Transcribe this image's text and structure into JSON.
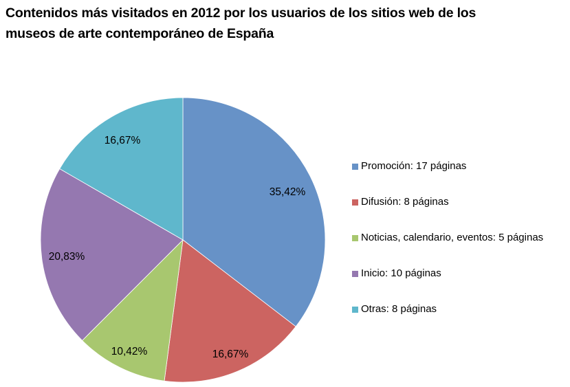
{
  "title": {
    "line1": "Contenidos más visitados en 2012 por los usuarios de los sitios web de los",
    "line2": "museos de arte contemporáneo de España"
  },
  "legend": [
    {
      "label": "Promoción: 17 páginas",
      "color": "#6792C7"
    },
    {
      "label": "Difusión: 8 páginas",
      "color": "#CC6461"
    },
    {
      "label": "Noticias, calendario, eventos: 5 páginas",
      "color": "#A8C76F"
    },
    {
      "label": "Inicio: 10 páginas",
      "color": "#9578B0"
    },
    {
      "label": "Otras: 8 páginas",
      "color": "#5FB7CC"
    }
  ],
  "slice_labels": [
    "35,42%",
    "16,67%",
    "10,42%",
    "20,83%",
    "16,67%"
  ],
  "chart_data": {
    "type": "pie",
    "title": "Contenidos más visitados en 2012 por los usuarios de los sitios web de los museos de arte contemporáneo de España",
    "categories": [
      "Promoción",
      "Difusión",
      "Noticias, calendario, eventos",
      "Inicio",
      "Otras"
    ],
    "values": [
      17,
      8,
      5,
      10,
      8
    ],
    "percentages": [
      35.42,
      16.67,
      10.42,
      20.83,
      16.67
    ],
    "unit": "páginas",
    "colors": [
      "#6792C7",
      "#CC6461",
      "#A8C76F",
      "#9578B0",
      "#5FB7CC"
    ],
    "legend_position": "right",
    "start_angle": "12 o'clock, clockwise"
  }
}
